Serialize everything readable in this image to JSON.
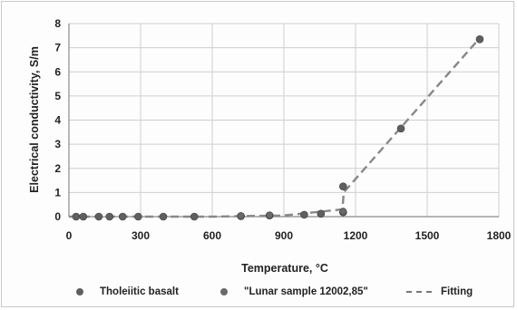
{
  "chart_data": {
    "type": "scatter",
    "title": "",
    "xlabel": "Temperature, °C",
    "ylabel": "Electrical conductivity, S/m",
    "xlim": [
      0,
      1800
    ],
    "ylim": [
      0,
      8
    ],
    "xticks": [
      0,
      300,
      600,
      900,
      1200,
      1500,
      1800
    ],
    "yticks": [
      0,
      1,
      2,
      3,
      4,
      5,
      6,
      7,
      8
    ],
    "grid": true,
    "legend_position": "bottom",
    "series": [
      {
        "name": "Tholeiitic basalt",
        "kind": "scatter",
        "color": "#5f5f5f",
        "points": [
          [
            30,
            0
          ],
          [
            60,
            0
          ],
          [
            125,
            0
          ],
          [
            170,
            0
          ],
          [
            225,
            0
          ],
          [
            290,
            0
          ],
          [
            395,
            0
          ],
          [
            525,
            0
          ],
          [
            720,
            0.02
          ],
          [
            840,
            0.05
          ],
          [
            985,
            0.08
          ],
          [
            1055,
            0.12
          ],
          [
            1148,
            0.18
          ],
          [
            1148,
            1.25
          ],
          [
            1390,
            3.65
          ],
          [
            1720,
            7.35
          ]
        ]
      },
      {
        "name": "\"Lunar sample 12002,85\"",
        "kind": "scatter",
        "color": "#6a6a6a",
        "points": [
          [
            720,
            0.03
          ],
          [
            840,
            0.06
          ],
          [
            1148,
            0.22
          ]
        ]
      },
      {
        "name": "Fitting",
        "kind": "line",
        "style": "dashed",
        "color": "#888888",
        "points": [
          [
            0,
            0
          ],
          [
            600,
            0
          ],
          [
            900,
            0.05
          ],
          [
            1145,
            0.3
          ],
          [
            1150,
            0.9
          ],
          [
            1150,
            1.0
          ],
          [
            1720,
            7.4
          ]
        ]
      }
    ]
  }
}
